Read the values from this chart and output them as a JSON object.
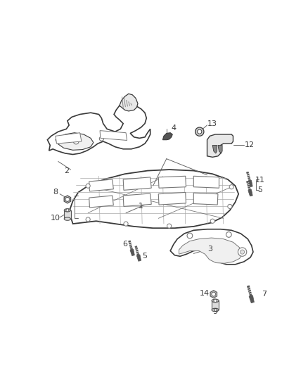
{
  "bg_color": "#ffffff",
  "lc": "#3a3a3a",
  "llc": "#aaaaaa",
  "mlc": "#777777",
  "figsize": [
    4.38,
    5.33
  ],
  "dpi": 100,
  "xlim": [
    0,
    438
  ],
  "ylim": [
    0,
    533
  ]
}
